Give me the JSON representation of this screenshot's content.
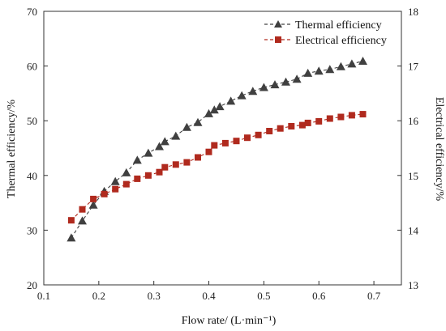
{
  "chart_data": {
    "type": "line",
    "title": "",
    "xlabel": "Flow rate/ (L·min⁻¹)",
    "ylabel_left": "Thermal efficiency/%",
    "ylabel_right": "Electrical efficiency/%",
    "xlim": [
      0.1,
      0.75
    ],
    "ylim_left": [
      20,
      70
    ],
    "ylim_right": [
      13,
      18
    ],
    "x_ticks": [
      "0.1",
      "0.2",
      "0.3",
      "0.4",
      "0.5",
      "0.6",
      "0.7"
    ],
    "y_ticks_left": [
      "20",
      "30",
      "40",
      "50",
      "60",
      "70"
    ],
    "y_ticks_right": [
      "13",
      "14",
      "15",
      "16",
      "17",
      "18"
    ],
    "grid": false,
    "legend_position": "top-right",
    "series": [
      {
        "name": "Thermal efficiency",
        "axis": "left",
        "marker": "triangle",
        "color": "#404040",
        "x": [
          0.15,
          0.17,
          0.19,
          0.21,
          0.23,
          0.25,
          0.27,
          0.29,
          0.31,
          0.32,
          0.34,
          0.36,
          0.38,
          0.4,
          0.41,
          0.42,
          0.44,
          0.46,
          0.48,
          0.5,
          0.52,
          0.54,
          0.56,
          0.58,
          0.6,
          0.62,
          0.64,
          0.66,
          0.68
        ],
        "values": [
          28.6,
          31.7,
          34.6,
          37.1,
          38.9,
          40.5,
          42.8,
          44.1,
          45.3,
          46.2,
          47.2,
          48.8,
          49.7,
          51.3,
          52.0,
          52.6,
          53.6,
          54.6,
          55.4,
          56.1,
          56.6,
          57.1,
          57.6,
          58.7,
          59.1,
          59.4,
          59.9,
          60.4,
          60.9
        ]
      },
      {
        "name": "Electrical efficiency",
        "axis": "right",
        "marker": "square",
        "color": "#b02a1e",
        "x": [
          0.15,
          0.17,
          0.19,
          0.21,
          0.23,
          0.25,
          0.27,
          0.29,
          0.31,
          0.32,
          0.34,
          0.36,
          0.38,
          0.4,
          0.41,
          0.43,
          0.45,
          0.47,
          0.49,
          0.51,
          0.53,
          0.55,
          0.57,
          0.58,
          0.6,
          0.62,
          0.64,
          0.66,
          0.68
        ],
        "values": [
          14.18,
          14.38,
          14.57,
          14.66,
          14.75,
          14.84,
          14.94,
          15.0,
          15.06,
          15.15,
          15.2,
          15.24,
          15.33,
          15.43,
          15.55,
          15.59,
          15.63,
          15.69,
          15.74,
          15.81,
          15.86,
          15.9,
          15.92,
          15.96,
          15.99,
          16.04,
          16.07,
          16.1,
          16.12
        ]
      }
    ]
  }
}
